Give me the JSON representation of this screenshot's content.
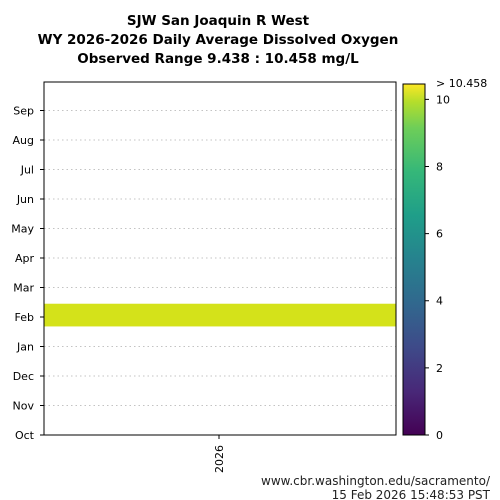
{
  "chart_data": {
    "type": "heatmap",
    "title": [
      "SJW San Joaquin R West",
      "WY 2026-2026 Daily Average Dissolved Oxygen",
      "Observed Range 9.438 : 10.458 mg/L"
    ],
    "xlabel": "",
    "ylabel": "",
    "x_categories": [
      "2026"
    ],
    "y_categories": [
      "Oct",
      "Nov",
      "Dec",
      "Jan",
      "Feb",
      "Mar",
      "Apr",
      "May",
      "Jun",
      "Jul",
      "Aug",
      "Sep"
    ],
    "y_range_months": [
      0,
      11
    ],
    "grid": true,
    "colormap": "viridis",
    "colorbar": {
      "min": 0,
      "max": 10.458,
      "ticks": [
        0,
        2,
        4,
        6,
        8,
        10
      ],
      "top_label": "> 10.458"
    },
    "cells": [
      {
        "x": "2026",
        "y_start": 3.68,
        "y_end": 4.45,
        "value": 9.9
      }
    ]
  },
  "footer": {
    "url": "www.cbr.washington.edu/sacramento/",
    "timestamp": "15 Feb 2026 15:48:53 PST"
  }
}
